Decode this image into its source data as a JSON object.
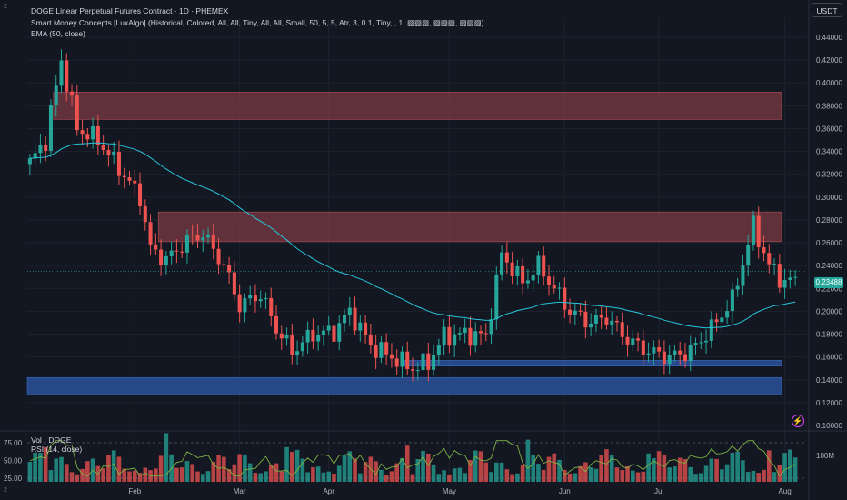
{
  "legend": {
    "title": "DOGE Linear Perpetual Futures Contract · 1D · PHEMEX",
    "indicator_smc": "Smart Money Concepts [LuxAlgo] (Historical, Colored, All, All, Tiny, All, All, Small, 50, 5, 5, Atr, 3, 0.1, Tiny, , 1, ▨▨▨, ▨▨▨, ▨▨▨)",
    "indicator_ema": "EMA (50, close)"
  },
  "sub_legend": {
    "volume": "Vol · DOGE",
    "rsi": "RSI (14, close)"
  },
  "currency_button": "USDT",
  "last_price": "0.23488",
  "volume_axis_label": "100M",
  "rsi_ticks": [
    "75.00",
    "50.00",
    "25.00"
  ],
  "price_ticks": [
    "0.44000",
    "0.42000",
    "0.40000",
    "0.38000",
    "0.36000",
    "0.34000",
    "0.32000",
    "0.30000",
    "0.28000",
    "0.26000",
    "0.24000",
    "0.22000",
    "0.20000",
    "0.18000",
    "0.16000",
    "0.14000",
    "0.12000",
    "0.10000"
  ],
  "time_ticks": [
    "Feb",
    "Mar",
    "Apr",
    "May",
    "Jun",
    "Jul",
    "Aug"
  ],
  "corner_marks": [
    "2",
    "2"
  ],
  "colors": {
    "up": "#26a69a",
    "down": "#ef5350",
    "ema": "#26c6da",
    "rsi": "#7cb342",
    "supply_zone": "#7b3b44",
    "demand_zone": "#2d5aa8",
    "grid": "#1e222d"
  },
  "chart_data": {
    "type": "candlestick",
    "price_ylim": [
      0.1,
      0.44
    ],
    "zones": [
      {
        "kind": "supply",
        "from_day": 5,
        "to_day": 1000,
        "low": 0.368,
        "high": 0.392
      },
      {
        "kind": "supply",
        "from_day": 25,
        "to_day": 1000,
        "low": 0.261,
        "high": 0.287
      },
      {
        "kind": "demand",
        "from_day": 72,
        "to_day": 1000,
        "low": 0.152,
        "high": 0.157
      },
      {
        "kind": "demand",
        "from_day": 0,
        "to_day": 1000,
        "low": 0.127,
        "high": 0.142
      }
    ],
    "anchors": [
      [
        0,
        0.33
      ],
      [
        3,
        0.35
      ],
      [
        6,
        0.42
      ],
      [
        9,
        0.36
      ],
      [
        13,
        0.35
      ],
      [
        17,
        0.325
      ],
      [
        21,
        0.3
      ],
      [
        23,
        0.255
      ],
      [
        26,
        0.245
      ],
      [
        30,
        0.262
      ],
      [
        33,
        0.268
      ],
      [
        37,
        0.24
      ],
      [
        40,
        0.205
      ],
      [
        44,
        0.215
      ],
      [
        47,
        0.185
      ],
      [
        50,
        0.165
      ],
      [
        54,
        0.18
      ],
      [
        58,
        0.182
      ],
      [
        61,
        0.2
      ],
      [
        65,
        0.17
      ],
      [
        69,
        0.16
      ],
      [
        73,
        0.15
      ],
      [
        76,
        0.155
      ],
      [
        79,
        0.178
      ],
      [
        83,
        0.18
      ],
      [
        87,
        0.178
      ],
      [
        90,
        0.25
      ],
      [
        94,
        0.225
      ],
      [
        97,
        0.24
      ],
      [
        100,
        0.22
      ],
      [
        103,
        0.2
      ],
      [
        107,
        0.19
      ],
      [
        110,
        0.195
      ],
      [
        114,
        0.175
      ],
      [
        118,
        0.165
      ],
      [
        122,
        0.16
      ],
      [
        126,
        0.165
      ],
      [
        130,
        0.185
      ],
      [
        134,
        0.21
      ],
      [
        138,
        0.275
      ],
      [
        141,
        0.24
      ],
      [
        144,
        0.225
      ],
      [
        146,
        0.23
      ]
    ],
    "month_start_days": [
      20,
      40,
      57,
      80,
      102,
      120,
      144
    ],
    "volume_max_label": "100M"
  }
}
